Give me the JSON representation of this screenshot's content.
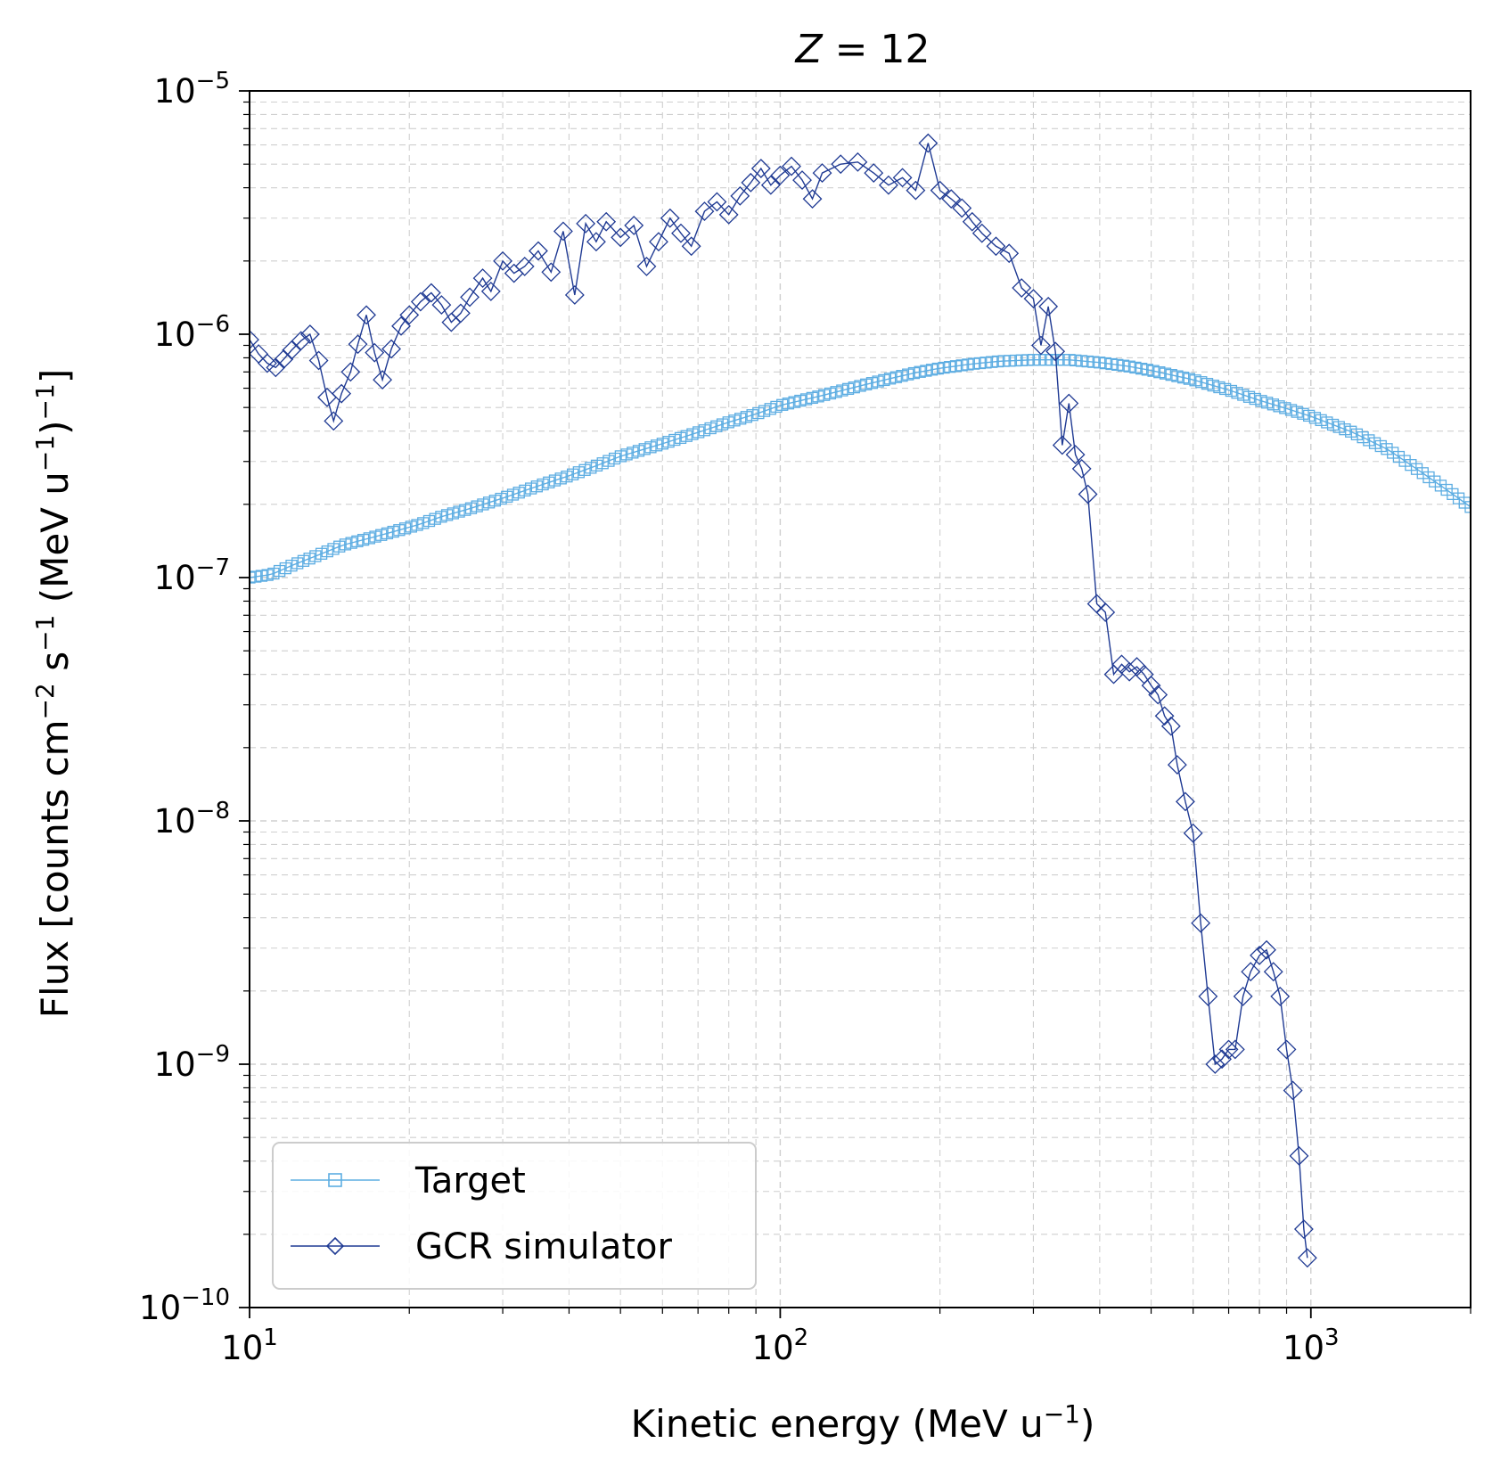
{
  "chart_data": {
    "type": "line",
    "title_var": "Z",
    "title_rest": " = 12",
    "xlabel": "Kinetic energy (MeV u",
    "xlabel_exp": "−1",
    "xlabel_end": ")",
    "ylabel": "Flux [counts cm",
    "ylabel_exp1": "−2",
    "ylabel_mid": " s",
    "ylabel_exp2": "−1",
    "ylabel_mid2": " (MeV u",
    "ylabel_exp3": "−1",
    "ylabel_mid3": ")",
    "ylabel_exp4": "−1",
    "ylabel_end": "]",
    "xscale": "log",
    "yscale": "log",
    "xlim": [
      10,
      2000
    ],
    "ylim": [
      1e-10,
      1e-05
    ],
    "grid": true,
    "legend_position": "lower-left",
    "x_ticks": [
      {
        "base": "10",
        "exp": "1",
        "value": 10
      },
      {
        "base": "10",
        "exp": "2",
        "value": 100
      },
      {
        "base": "10",
        "exp": "3",
        "value": 1000
      }
    ],
    "y_ticks": [
      {
        "base": "10",
        "exp": "−10",
        "value": 1e-10
      },
      {
        "base": "10",
        "exp": "−9",
        "value": 1e-09
      },
      {
        "base": "10",
        "exp": "−8",
        "value": 1e-08
      },
      {
        "base": "10",
        "exp": "−7",
        "value": 1e-07
      },
      {
        "base": "10",
        "exp": "−6",
        "value": 1e-06
      },
      {
        "base": "10",
        "exp": "−5",
        "value": 1e-05
      }
    ],
    "series": [
      {
        "name": "Target",
        "color": "#5dade2",
        "marker": "square",
        "x_range": [
          10,
          2000
        ],
        "points": [
          [
            10,
            1e-07
          ],
          [
            11,
            1.03e-07
          ],
          [
            12,
            1.12e-07
          ],
          [
            13,
            1.2e-07
          ],
          [
            14,
            1.28e-07
          ],
          [
            15,
            1.36e-07
          ],
          [
            17,
            1.46e-07
          ],
          [
            19,
            1.56e-07
          ],
          [
            21,
            1.66e-07
          ],
          [
            23,
            1.78e-07
          ],
          [
            26,
            1.92e-07
          ],
          [
            30,
            2.12e-07
          ],
          [
            35,
            2.38e-07
          ],
          [
            40,
            2.62e-07
          ],
          [
            45,
            2.88e-07
          ],
          [
            50,
            3.15e-07
          ],
          [
            60,
            3.55e-07
          ],
          [
            70,
            3.95e-07
          ],
          [
            80,
            4.35e-07
          ],
          [
            90,
            4.7e-07
          ],
          [
            100,
            5.1e-07
          ],
          [
            120,
            5.6e-07
          ],
          [
            140,
            6.1e-07
          ],
          [
            160,
            6.55e-07
          ],
          [
            180,
            6.95e-07
          ],
          [
            200,
            7.25e-07
          ],
          [
            230,
            7.55e-07
          ],
          [
            260,
            7.75e-07
          ],
          [
            300,
            7.85e-07
          ],
          [
            350,
            7.85e-07
          ],
          [
            400,
            7.65e-07
          ],
          [
            450,
            7.4e-07
          ],
          [
            500,
            7.1e-07
          ],
          [
            600,
            6.5e-07
          ],
          [
            700,
            5.9e-07
          ],
          [
            800,
            5.35e-07
          ],
          [
            900,
            4.95e-07
          ],
          [
            1000,
            4.6e-07
          ],
          [
            1100,
            4.25e-07
          ],
          [
            1200,
            3.95e-07
          ],
          [
            1400,
            3.35e-07
          ],
          [
            1600,
            2.75e-07
          ],
          [
            1800,
            2.3e-07
          ],
          [
            2000,
            1.95e-07
          ]
        ]
      },
      {
        "name": "GCR simulator",
        "color": "#1f3a93",
        "marker": "diamond",
        "points": [
          [
            10.0,
            9.5e-07
          ],
          [
            10.4,
            8.3e-07
          ],
          [
            10.8,
            7.6e-07
          ],
          [
            11.2,
            7.3e-07
          ],
          [
            11.6,
            7.9e-07
          ],
          [
            12.0,
            8.6e-07
          ],
          [
            12.5,
            9.4e-07
          ],
          [
            13.0,
            1e-06
          ],
          [
            13.5,
            7.8e-07
          ],
          [
            14.0,
            5.5e-07
          ],
          [
            14.4,
            4.4e-07
          ],
          [
            14.9,
            5.7e-07
          ],
          [
            15.5,
            7e-07
          ],
          [
            16.0,
            9.1e-07
          ],
          [
            16.6,
            1.2e-06
          ],
          [
            17.2,
            8.4e-07
          ],
          [
            17.8,
            6.5e-07
          ],
          [
            18.5,
            8.7e-07
          ],
          [
            19.3,
            1.08e-06
          ],
          [
            20.0,
            1.2e-06
          ],
          [
            21.0,
            1.36e-06
          ],
          [
            22.0,
            1.48e-06
          ],
          [
            23.0,
            1.32e-06
          ],
          [
            24.0,
            1.12e-06
          ],
          [
            25.0,
            1.22e-06
          ],
          [
            26.0,
            1.42e-06
          ],
          [
            27.5,
            1.7e-06
          ],
          [
            28.5,
            1.5e-06
          ],
          [
            30.0,
            2e-06
          ],
          [
            31.5,
            1.78e-06
          ],
          [
            33.0,
            1.9e-06
          ],
          [
            35.0,
            2.2e-06
          ],
          [
            37.0,
            1.8e-06
          ],
          [
            39.0,
            2.65e-06
          ],
          [
            41.0,
            1.45e-06
          ],
          [
            43.0,
            2.85e-06
          ],
          [
            45.0,
            2.4e-06
          ],
          [
            47.0,
            2.9e-06
          ],
          [
            50.0,
            2.5e-06
          ],
          [
            53.0,
            2.8e-06
          ],
          [
            56.0,
            1.9e-06
          ],
          [
            59.0,
            2.4e-06
          ],
          [
            62.0,
            3e-06
          ],
          [
            65.0,
            2.6e-06
          ],
          [
            68.0,
            2.3e-06
          ],
          [
            72.0,
            3.2e-06
          ],
          [
            76.0,
            3.5e-06
          ],
          [
            80.0,
            3.1e-06
          ],
          [
            84.0,
            3.7e-06
          ],
          [
            88.0,
            4.2e-06
          ],
          [
            92.0,
            4.8e-06
          ],
          [
            96.0,
            4.1e-06
          ],
          [
            100.0,
            4.5e-06
          ],
          [
            105.0,
            4.9e-06
          ],
          [
            110.0,
            4.3e-06
          ],
          [
            115.0,
            3.6e-06
          ],
          [
            120.0,
            4.6e-06
          ],
          [
            130.0,
            5e-06
          ],
          [
            140.0,
            5.1e-06
          ],
          [
            150.0,
            4.6e-06
          ],
          [
            160.0,
            4.1e-06
          ],
          [
            170.0,
            4.4e-06
          ],
          [
            180.0,
            3.9e-06
          ],
          [
            190.0,
            6.1e-06
          ],
          [
            200.0,
            3.9e-06
          ],
          [
            210.0,
            3.6e-06
          ],
          [
            220.0,
            3.3e-06
          ],
          [
            230.0,
            2.9e-06
          ],
          [
            240.0,
            2.6e-06
          ],
          [
            255.0,
            2.3e-06
          ],
          [
            270.0,
            2.15e-06
          ],
          [
            285.0,
            1.55e-06
          ],
          [
            300.0,
            1.4e-06
          ],
          [
            310.0,
            9e-07
          ],
          [
            320.0,
            1.3e-06
          ],
          [
            330.0,
            8.5e-07
          ],
          [
            340.0,
            3.5e-07
          ],
          [
            350.0,
            5.2e-07
          ],
          [
            360.0,
            3.2e-07
          ],
          [
            370.0,
            2.8e-07
          ],
          [
            380.0,
            2.2e-07
          ],
          [
            395.0,
            7.8e-08
          ],
          [
            410.0,
            7.2e-08
          ],
          [
            425.0,
            4e-08
          ],
          [
            440.0,
            4.4e-08
          ],
          [
            455.0,
            4.1e-08
          ],
          [
            470.0,
            4.3e-08
          ],
          [
            485.0,
            4e-08
          ],
          [
            500.0,
            3.6e-08
          ],
          [
            515.0,
            3.3e-08
          ],
          [
            530.0,
            2.7e-08
          ],
          [
            545.0,
            2.45e-08
          ],
          [
            560.0,
            1.7e-08
          ],
          [
            580.0,
            1.2e-08
          ],
          [
            600.0,
            8.9e-09
          ],
          [
            620.0,
            3.8e-09
          ],
          [
            640.0,
            1.9e-09
          ],
          [
            660.0,
            1e-09
          ],
          [
            680.0,
            1.05e-09
          ],
          [
            700.0,
            1.15e-09
          ],
          [
            720.0,
            1.15e-09
          ],
          [
            745.0,
            1.9e-09
          ],
          [
            770.0,
            2.4e-09
          ],
          [
            800.0,
            2.8e-09
          ],
          [
            825.0,
            2.95e-09
          ],
          [
            850.0,
            2.4e-09
          ],
          [
            875.0,
            1.9e-09
          ],
          [
            900.0,
            1.15e-09
          ],
          [
            925.0,
            7.8e-10
          ],
          [
            950.0,
            4.2e-10
          ],
          [
            970.0,
            2.1e-10
          ],
          [
            985.0,
            1.6e-10
          ]
        ]
      }
    ]
  }
}
